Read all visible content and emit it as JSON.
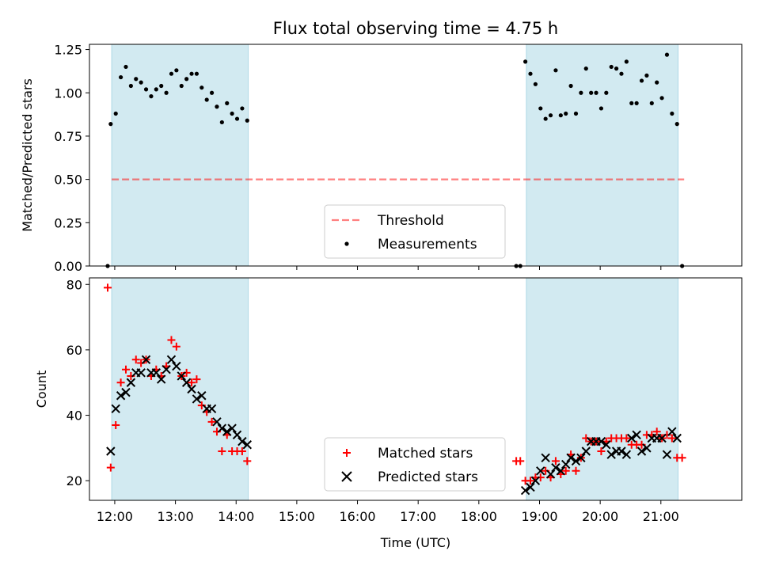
{
  "title": "Flux total observing time = 4.75 h",
  "colors": {
    "band": "#add8e6",
    "threshold": "#ff0000",
    "measurement": "#000000",
    "matched": "#ff0000",
    "predicted": "#000000"
  },
  "chart_data": [
    {
      "type": "scatter",
      "ylabel": "Matched/Predicted stars",
      "xlabel": "",
      "xlim": [
        "11:35",
        "22:20"
      ],
      "ylim": [
        0,
        1.28
      ],
      "yticks": [
        "0.00",
        "0.25",
        "0.50",
        "0.75",
        "1.00",
        "1.25"
      ],
      "shaded_intervals": [
        [
          "11:57",
          "14:12"
        ],
        [
          "18:47",
          "21:17"
        ]
      ],
      "threshold": {
        "name": "Threshold",
        "value": 0.5,
        "x_range": [
          "11:57",
          "21:23"
        ]
      },
      "legend": {
        "placement": "lower-center",
        "entries": [
          "Threshold",
          "Measurements"
        ]
      },
      "series": [
        {
          "name": "Measurements",
          "points": [
            [
              "11:53",
              0.0
            ],
            [
              "11:56",
              0.82
            ],
            [
              "12:01",
              0.88
            ],
            [
              "12:06",
              1.09
            ],
            [
              "12:11",
              1.15
            ],
            [
              "12:16",
              1.04
            ],
            [
              "12:21",
              1.08
            ],
            [
              "12:26",
              1.06
            ],
            [
              "12:31",
              1.02
            ],
            [
              "12:36",
              0.98
            ],
            [
              "12:41",
              1.02
            ],
            [
              "12:46",
              1.04
            ],
            [
              "12:51",
              1.0
            ],
            [
              "12:56",
              1.11
            ],
            [
              "13:01",
              1.13
            ],
            [
              "13:06",
              1.04
            ],
            [
              "13:11",
              1.08
            ],
            [
              "13:16",
              1.11
            ],
            [
              "13:21",
              1.11
            ],
            [
              "13:26",
              1.03
            ],
            [
              "13:31",
              0.96
            ],
            [
              "13:36",
              1.0
            ],
            [
              "13:41",
              0.92
            ],
            [
              "13:46",
              0.83
            ],
            [
              "13:51",
              0.94
            ],
            [
              "13:56",
              0.88
            ],
            [
              "14:01",
              0.85
            ],
            [
              "14:06",
              0.91
            ],
            [
              "14:11",
              0.84
            ],
            [
              "18:37",
              0.0
            ],
            [
              "18:41",
              0.0
            ],
            [
              "18:46",
              1.18
            ],
            [
              "18:51",
              1.11
            ],
            [
              "18:56",
              1.05
            ],
            [
              "19:01",
              0.91
            ],
            [
              "19:06",
              0.85
            ],
            [
              "19:11",
              0.87
            ],
            [
              "19:16",
              1.13
            ],
            [
              "19:21",
              0.87
            ],
            [
              "19:26",
              0.88
            ],
            [
              "19:31",
              1.04
            ],
            [
              "19:36",
              0.88
            ],
            [
              "19:41",
              1.0
            ],
            [
              "19:46",
              1.14
            ],
            [
              "19:51",
              1.0
            ],
            [
              "19:56",
              1.0
            ],
            [
              "20:01",
              0.91
            ],
            [
              "20:06",
              1.0
            ],
            [
              "20:11",
              1.15
            ],
            [
              "20:16",
              1.14
            ],
            [
              "20:21",
              1.11
            ],
            [
              "20:26",
              1.18
            ],
            [
              "20:31",
              0.94
            ],
            [
              "20:36",
              0.94
            ],
            [
              "20:41",
              1.07
            ],
            [
              "20:46",
              1.1
            ],
            [
              "20:51",
              0.94
            ],
            [
              "20:56",
              1.06
            ],
            [
              "21:01",
              0.97
            ],
            [
              "21:06",
              1.22
            ],
            [
              "21:11",
              0.88
            ],
            [
              "21:16",
              0.82
            ],
            [
              "21:21",
              0.0
            ]
          ]
        }
      ]
    },
    {
      "type": "scatter",
      "ylabel": "Count",
      "xlabel": "Time (UTC)",
      "xlim": [
        "11:35",
        "22:20"
      ],
      "ylim": [
        14,
        82
      ],
      "yticks": [
        "20",
        "40",
        "60",
        "80"
      ],
      "xticks": [
        "12:00",
        "13:00",
        "14:00",
        "15:00",
        "16:00",
        "17:00",
        "18:00",
        "19:00",
        "20:00",
        "21:00"
      ],
      "shaded_intervals": [
        [
          "11:57",
          "14:12"
        ],
        [
          "18:47",
          "21:17"
        ]
      ],
      "legend": {
        "placement": "lower-center",
        "entries": [
          "Matched stars",
          "Predicted stars"
        ]
      },
      "series": [
        {
          "name": "Matched stars",
          "marker": "plus",
          "points": [
            [
              "11:53",
              79
            ],
            [
              "11:56",
              24
            ],
            [
              "12:01",
              37
            ],
            [
              "12:06",
              50
            ],
            [
              "12:11",
              54
            ],
            [
              "12:16",
              52
            ],
            [
              "12:21",
              57
            ],
            [
              "12:26",
              56
            ],
            [
              "12:31",
              57
            ],
            [
              "12:36",
              52
            ],
            [
              "12:41",
              54
            ],
            [
              "12:46",
              52
            ],
            [
              "12:51",
              55
            ],
            [
              "12:56",
              63
            ],
            [
              "13:01",
              61
            ],
            [
              "13:06",
              52
            ],
            [
              "13:11",
              53
            ],
            [
              "13:16",
              50
            ],
            [
              "13:21",
              51
            ],
            [
              "13:26",
              43
            ],
            [
              "13:31",
              41
            ],
            [
              "13:36",
              38
            ],
            [
              "13:41",
              35
            ],
            [
              "13:46",
              29
            ],
            [
              "13:51",
              34
            ],
            [
              "13:56",
              29
            ],
            [
              "14:01",
              29
            ],
            [
              "14:06",
              29
            ],
            [
              "14:11",
              26
            ],
            [
              "18:37",
              26
            ],
            [
              "18:41",
              26
            ],
            [
              "18:46",
              20
            ],
            [
              "18:51",
              20
            ],
            [
              "18:56",
              21
            ],
            [
              "19:01",
              21
            ],
            [
              "19:06",
              23
            ],
            [
              "19:11",
              21
            ],
            [
              "19:16",
              26
            ],
            [
              "19:21",
              22
            ],
            [
              "19:26",
              23
            ],
            [
              "19:31",
              28
            ],
            [
              "19:36",
              23
            ],
            [
              "19:41",
              27
            ],
            [
              "19:46",
              33
            ],
            [
              "19:51",
              32
            ],
            [
              "19:56",
              32
            ],
            [
              "20:01",
              29
            ],
            [
              "20:06",
              32
            ],
            [
              "20:11",
              33
            ],
            [
              "20:16",
              33
            ],
            [
              "20:21",
              33
            ],
            [
              "20:26",
              33
            ],
            [
              "20:31",
              31
            ],
            [
              "20:36",
              31
            ],
            [
              "20:41",
              31
            ],
            [
              "20:46",
              34
            ],
            [
              "20:51",
              34
            ],
            [
              "20:56",
              35
            ],
            [
              "21:01",
              33
            ],
            [
              "21:06",
              34
            ],
            [
              "21:11",
              33
            ],
            [
              "21:16",
              27
            ],
            [
              "21:21",
              27
            ]
          ]
        },
        {
          "name": "Predicted stars",
          "marker": "x",
          "points": [
            [
              "11:56",
              29
            ],
            [
              "12:01",
              42
            ],
            [
              "12:06",
              46
            ],
            [
              "12:11",
              47
            ],
            [
              "12:16",
              50
            ],
            [
              "12:21",
              53
            ],
            [
              "12:26",
              53
            ],
            [
              "12:31",
              57
            ],
            [
              "12:36",
              53
            ],
            [
              "12:41",
              53
            ],
            [
              "12:46",
              51
            ],
            [
              "12:51",
              54
            ],
            [
              "12:56",
              57
            ],
            [
              "13:01",
              55
            ],
            [
              "13:06",
              52
            ],
            [
              "13:11",
              50
            ],
            [
              "13:16",
              48
            ],
            [
              "13:21",
              45
            ],
            [
              "13:26",
              46
            ],
            [
              "13:31",
              42
            ],
            [
              "13:36",
              42
            ],
            [
              "13:41",
              38
            ],
            [
              "13:46",
              36
            ],
            [
              "13:51",
              35
            ],
            [
              "13:56",
              36
            ],
            [
              "14:01",
              34
            ],
            [
              "14:06",
              32
            ],
            [
              "14:11",
              31
            ],
            [
              "18:46",
              17
            ],
            [
              "18:51",
              18
            ],
            [
              "18:56",
              20
            ],
            [
              "19:01",
              23
            ],
            [
              "19:06",
              27
            ],
            [
              "19:11",
              22
            ],
            [
              "19:16",
              24
            ],
            [
              "19:21",
              23
            ],
            [
              "19:26",
              25
            ],
            [
              "19:31",
              27
            ],
            [
              "19:36",
              26
            ],
            [
              "19:41",
              27
            ],
            [
              "19:46",
              29
            ],
            [
              "19:51",
              32
            ],
            [
              "19:56",
              32
            ],
            [
              "20:01",
              32
            ],
            [
              "20:06",
              31
            ],
            [
              "20:11",
              28
            ],
            [
              "20:16",
              29
            ],
            [
              "20:21",
              29
            ],
            [
              "20:26",
              28
            ],
            [
              "20:31",
              33
            ],
            [
              "20:36",
              34
            ],
            [
              "20:41",
              29
            ],
            [
              "20:46",
              30
            ],
            [
              "20:51",
              33
            ],
            [
              "20:56",
              33
            ],
            [
              "21:01",
              33
            ],
            [
              "21:06",
              28
            ],
            [
              "21:11",
              35
            ],
            [
              "21:16",
              33
            ]
          ]
        }
      ]
    }
  ]
}
